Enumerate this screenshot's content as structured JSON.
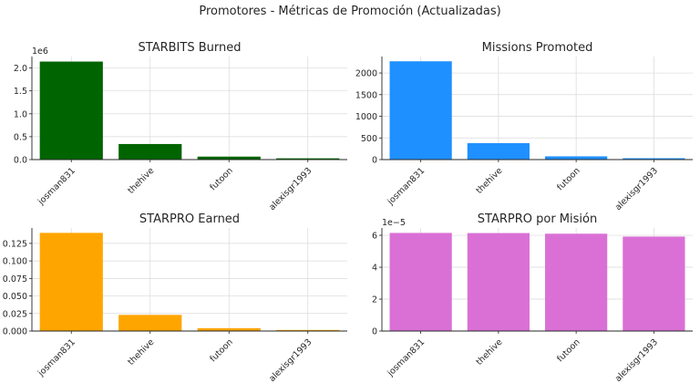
{
  "suptitle": "Promotores - Métricas de Promoción (Actualizadas)",
  "chart_data": [
    {
      "type": "bar",
      "title": "STARBITS Burned",
      "categories": [
        "josman831",
        "thehive",
        "futoon",
        "alexisgr1993"
      ],
      "values": [
        2140000,
        340000,
        65000,
        28000
      ],
      "ylim": [
        0,
        2250000
      ],
      "yticks": [
        0,
        500000,
        1000000,
        1500000,
        2000000
      ],
      "ytick_labels": [
        "0.0",
        "0.5",
        "1.0",
        "1.5",
        "2.0"
      ],
      "offset_label": "1e6",
      "color": "#006400",
      "grid": true
    },
    {
      "type": "bar",
      "title": "Missions Promoted",
      "categories": [
        "josman831",
        "thehive",
        "futoon",
        "alexisgr1993"
      ],
      "values": [
        2270,
        380,
        75,
        32
      ],
      "ylim": [
        0,
        2380
      ],
      "yticks": [
        0,
        500,
        1000,
        1500,
        2000
      ],
      "ytick_labels": [
        "0",
        "500",
        "1000",
        "1500",
        "2000"
      ],
      "offset_label": "",
      "color": "#1e90ff",
      "grid": true
    },
    {
      "type": "bar",
      "title": "STARPRO Earned",
      "categories": [
        "josman831",
        "thehive",
        "futoon",
        "alexisgr1993"
      ],
      "values": [
        0.14,
        0.023,
        0.004,
        0.0015
      ],
      "ylim": [
        0,
        0.147
      ],
      "yticks": [
        0,
        0.025,
        0.05,
        0.075,
        0.1,
        0.125
      ],
      "ytick_labels": [
        "0.000",
        "0.025",
        "0.050",
        "0.075",
        "0.100",
        "0.125"
      ],
      "offset_label": "",
      "color": "#ffa500",
      "grid": true
    },
    {
      "type": "bar",
      "title": "STARPRO por Misión",
      "categories": [
        "josman831",
        "thehive",
        "futoon",
        "alexisgr1993"
      ],
      "values": [
        6.15e-05,
        6.14e-05,
        6.1e-05,
        5.92e-05
      ],
      "ylim": [
        0,
        6.46e-05
      ],
      "yticks": [
        0,
        2e-05,
        4e-05,
        6e-05
      ],
      "ytick_labels": [
        "0",
        "2",
        "4",
        "6"
      ],
      "offset_label": "1e−5",
      "color": "#da70d6",
      "grid": true
    }
  ]
}
